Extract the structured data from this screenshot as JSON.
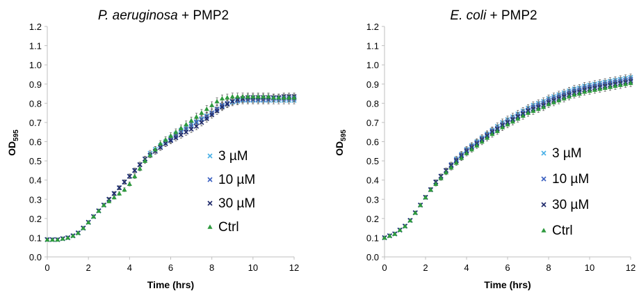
{
  "colors": {
    "axis": "#bfbfbf",
    "errorbar": "#555555",
    "text": "#000000",
    "s3": "#4ab0e6",
    "s10": "#3a5fc0",
    "s30": "#1f2a6b",
    "ctrl": "#2e9a3e"
  },
  "chart_data": [
    {
      "type": "scatter",
      "title_italic": "P. aeruginosa",
      "title_rest": " + PMP2",
      "xlabel": "Time (hrs)",
      "ylabel_main": "OD",
      "ylabel_sub": "595",
      "xlim": [
        0,
        12
      ],
      "ylim": [
        0,
        1.2
      ],
      "xticks": [
        "0",
        "2",
        "4",
        "6",
        "8",
        "10",
        "12"
      ],
      "yticks": [
        "0.0",
        "0.1",
        "0.2",
        "0.3",
        "0.4",
        "0.5",
        "0.6",
        "0.7",
        "0.8",
        "0.9",
        "1.0",
        "1.1",
        "1.2"
      ],
      "legend_position": "right-center",
      "grid": false,
      "x": [
        0,
        0.25,
        0.5,
        0.75,
        1,
        1.25,
        1.5,
        1.75,
        2,
        2.25,
        2.5,
        2.75,
        3,
        3.25,
        3.5,
        3.75,
        4,
        4.25,
        4.5,
        4.75,
        5,
        5.25,
        5.5,
        5.75,
        6,
        6.25,
        6.5,
        6.75,
        7,
        7.25,
        7.5,
        7.75,
        8,
        8.25,
        8.5,
        8.75,
        9,
        9.25,
        9.5,
        9.75,
        10,
        10.25,
        10.5,
        10.75,
        11,
        11.25,
        11.5,
        11.75,
        12
      ],
      "series": [
        {
          "name": "3 µM",
          "marker": "x",
          "color_key": "s3",
          "values": [
            0.09,
            0.09,
            0.09,
            0.095,
            0.1,
            0.11,
            0.125,
            0.15,
            0.18,
            0.21,
            0.24,
            0.27,
            0.3,
            0.33,
            0.36,
            0.39,
            0.42,
            0.45,
            0.48,
            0.51,
            0.54,
            0.56,
            0.58,
            0.6,
            0.62,
            0.64,
            0.66,
            0.675,
            0.69,
            0.705,
            0.72,
            0.735,
            0.75,
            0.77,
            0.785,
            0.795,
            0.805,
            0.81,
            0.815,
            0.815,
            0.815,
            0.815,
            0.815,
            0.815,
            0.815,
            0.815,
            0.815,
            0.815,
            0.815
          ]
        },
        {
          "name": "10 µM",
          "marker": "x",
          "color_key": "s10",
          "values": [
            0.09,
            0.09,
            0.09,
            0.095,
            0.1,
            0.11,
            0.125,
            0.15,
            0.18,
            0.21,
            0.24,
            0.27,
            0.3,
            0.33,
            0.36,
            0.39,
            0.42,
            0.45,
            0.48,
            0.51,
            0.53,
            0.55,
            0.57,
            0.59,
            0.61,
            0.63,
            0.65,
            0.665,
            0.68,
            0.7,
            0.715,
            0.73,
            0.75,
            0.77,
            0.79,
            0.8,
            0.81,
            0.815,
            0.82,
            0.82,
            0.82,
            0.82,
            0.82,
            0.82,
            0.825,
            0.825,
            0.825,
            0.825,
            0.825
          ]
        },
        {
          "name": "30 µM",
          "marker": "x",
          "color_key": "s30",
          "values": [
            0.09,
            0.09,
            0.09,
            0.095,
            0.1,
            0.11,
            0.125,
            0.15,
            0.18,
            0.21,
            0.24,
            0.27,
            0.3,
            0.33,
            0.36,
            0.39,
            0.42,
            0.45,
            0.48,
            0.51,
            0.53,
            0.55,
            0.57,
            0.59,
            0.605,
            0.62,
            0.635,
            0.65,
            0.665,
            0.68,
            0.7,
            0.72,
            0.74,
            0.76,
            0.78,
            0.795,
            0.81,
            0.82,
            0.825,
            0.83,
            0.83,
            0.83,
            0.83,
            0.83,
            0.83,
            0.83,
            0.835,
            0.835,
            0.835
          ]
        },
        {
          "name": "Ctrl",
          "marker": "triangle",
          "color_key": "ctrl",
          "values": [
            0.09,
            0.09,
            0.09,
            0.095,
            0.1,
            0.11,
            0.125,
            0.15,
            0.18,
            0.21,
            0.24,
            0.27,
            0.29,
            0.31,
            0.33,
            0.35,
            0.38,
            0.42,
            0.46,
            0.5,
            0.53,
            0.56,
            0.59,
            0.61,
            0.63,
            0.65,
            0.67,
            0.69,
            0.71,
            0.73,
            0.75,
            0.77,
            0.79,
            0.81,
            0.825,
            0.83,
            0.835,
            0.835,
            0.835,
            0.835,
            0.835,
            0.835,
            0.835,
            0.835,
            0.83,
            0.83,
            0.83,
            0.83,
            0.83
          ]
        }
      ]
    },
    {
      "type": "scatter",
      "title_italic": "E. coli",
      "title_rest": " + PMP2",
      "xlabel": "Time (hrs)",
      "ylabel_main": "OD",
      "ylabel_sub": "595",
      "xlim": [
        0,
        12
      ],
      "ylim": [
        0,
        1.2
      ],
      "xticks": [
        "0",
        "2",
        "4",
        "6",
        "8",
        "10",
        "12"
      ],
      "yticks": [
        "0.0",
        "0.1",
        "0.2",
        "0.3",
        "0.4",
        "0.5",
        "0.6",
        "0.7",
        "0.8",
        "0.9",
        "1.0",
        "1.1",
        "1.2"
      ],
      "legend_position": "right-center",
      "grid": false,
      "x": [
        0,
        0.25,
        0.5,
        0.75,
        1,
        1.25,
        1.5,
        1.75,
        2,
        2.25,
        2.5,
        2.75,
        3,
        3.25,
        3.5,
        3.75,
        4,
        4.25,
        4.5,
        4.75,
        5,
        5.25,
        5.5,
        5.75,
        6,
        6.25,
        6.5,
        6.75,
        7,
        7.25,
        7.5,
        7.75,
        8,
        8.25,
        8.5,
        8.75,
        9,
        9.25,
        9.5,
        9.75,
        10,
        10.25,
        10.5,
        10.75,
        11,
        11.25,
        11.5,
        11.75,
        12
      ],
      "series": [
        {
          "name": "3 µM",
          "marker": "x",
          "color_key": "s3",
          "values": [
            0.1,
            0.11,
            0.12,
            0.14,
            0.16,
            0.19,
            0.23,
            0.27,
            0.31,
            0.35,
            0.39,
            0.42,
            0.45,
            0.48,
            0.51,
            0.535,
            0.56,
            0.58,
            0.6,
            0.62,
            0.64,
            0.66,
            0.68,
            0.7,
            0.715,
            0.73,
            0.745,
            0.76,
            0.775,
            0.79,
            0.8,
            0.81,
            0.825,
            0.835,
            0.845,
            0.855,
            0.865,
            0.875,
            0.88,
            0.89,
            0.895,
            0.9,
            0.905,
            0.91,
            0.915,
            0.92,
            0.925,
            0.93,
            0.935
          ]
        },
        {
          "name": "10 µM",
          "marker": "x",
          "color_key": "s10",
          "values": [
            0.1,
            0.11,
            0.12,
            0.14,
            0.16,
            0.19,
            0.23,
            0.27,
            0.31,
            0.35,
            0.39,
            0.42,
            0.45,
            0.48,
            0.505,
            0.53,
            0.555,
            0.575,
            0.595,
            0.615,
            0.635,
            0.655,
            0.67,
            0.69,
            0.705,
            0.72,
            0.735,
            0.75,
            0.765,
            0.78,
            0.79,
            0.8,
            0.815,
            0.825,
            0.835,
            0.845,
            0.855,
            0.865,
            0.87,
            0.88,
            0.885,
            0.89,
            0.895,
            0.9,
            0.905,
            0.91,
            0.915,
            0.92,
            0.925
          ]
        },
        {
          "name": "30 µM",
          "marker": "x",
          "color_key": "s30",
          "values": [
            0.1,
            0.11,
            0.12,
            0.14,
            0.16,
            0.19,
            0.23,
            0.27,
            0.31,
            0.35,
            0.39,
            0.42,
            0.45,
            0.475,
            0.5,
            0.525,
            0.55,
            0.57,
            0.59,
            0.61,
            0.63,
            0.65,
            0.665,
            0.685,
            0.7,
            0.715,
            0.73,
            0.745,
            0.76,
            0.77,
            0.78,
            0.79,
            0.805,
            0.815,
            0.825,
            0.835,
            0.845,
            0.855,
            0.86,
            0.87,
            0.875,
            0.88,
            0.885,
            0.89,
            0.895,
            0.9,
            0.905,
            0.91,
            0.915
          ]
        },
        {
          "name": "Ctrl",
          "marker": "triangle",
          "color_key": "ctrl",
          "values": [
            0.1,
            0.11,
            0.12,
            0.14,
            0.16,
            0.19,
            0.23,
            0.27,
            0.31,
            0.35,
            0.38,
            0.41,
            0.44,
            0.465,
            0.49,
            0.515,
            0.54,
            0.56,
            0.58,
            0.6,
            0.62,
            0.64,
            0.655,
            0.675,
            0.69,
            0.705,
            0.72,
            0.735,
            0.75,
            0.76,
            0.77,
            0.78,
            0.795,
            0.805,
            0.815,
            0.825,
            0.835,
            0.845,
            0.85,
            0.86,
            0.865,
            0.87,
            0.875,
            0.88,
            0.885,
            0.89,
            0.895,
            0.9,
            0.905
          ]
        }
      ]
    }
  ]
}
